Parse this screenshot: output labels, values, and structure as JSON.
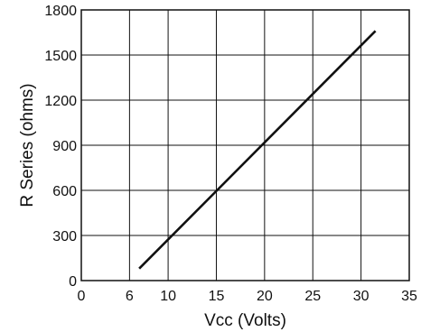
{
  "chart_data": {
    "type": "line",
    "title": "",
    "xlabel": "Vcc (Volts)",
    "ylabel": "R Series (ohms)",
    "xlim": [
      0,
      35
    ],
    "ylim": [
      0,
      1800
    ],
    "x_ticks": [
      0,
      6,
      10,
      15,
      20,
      25,
      30,
      35
    ],
    "x_tick_labels": [
      "0",
      "6",
      "10",
      "15",
      "20",
      "25",
      "30",
      "35"
    ],
    "y_ticks": [
      0,
      300,
      600,
      900,
      1200,
      1500,
      1800
    ],
    "y_tick_labels": [
      "0",
      "300",
      "600",
      "900",
      "1200",
      "1500",
      "1800"
    ],
    "grid": true,
    "series": [
      {
        "x": [
          7,
          31.5
        ],
        "y": [
          80,
          1660
        ],
        "color": "#111111"
      }
    ]
  }
}
